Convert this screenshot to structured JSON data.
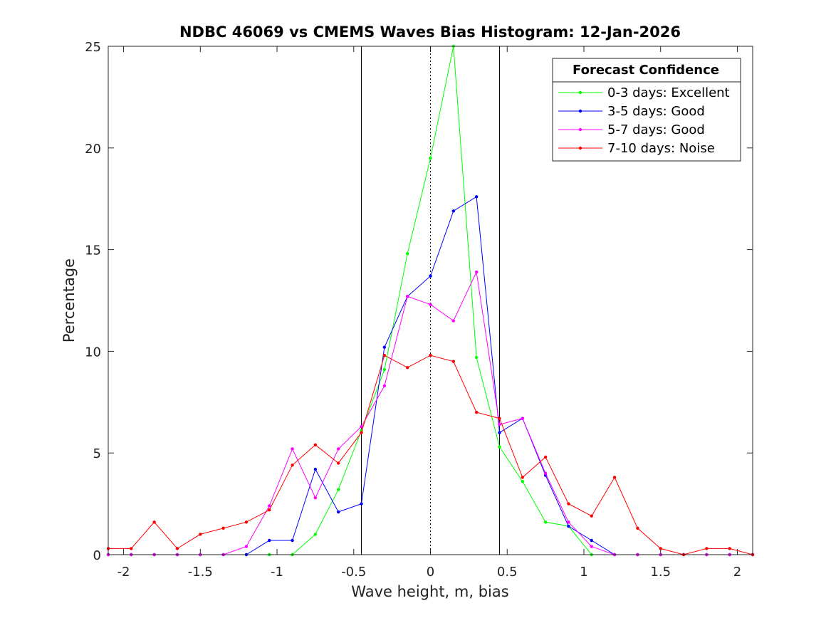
{
  "chart_data": {
    "type": "line",
    "title": "NDBC 46069 vs CMEMS Waves Bias Histogram: 12-Jan-2026",
    "xlabel": "Wave height, m, bias",
    "ylabel": "Percentage",
    "xlim": [
      -2.1,
      2.1
    ],
    "ylim": [
      0,
      25
    ],
    "xticks": [
      -2,
      -1.5,
      -1,
      -0.5,
      0,
      0.5,
      1,
      1.5,
      2
    ],
    "xtick_labels": [
      "-2",
      "-1.5",
      "-1",
      "-0.5",
      "0",
      "0.5",
      "1",
      "1.5",
      "2"
    ],
    "yticks": [
      0,
      5,
      10,
      15,
      20,
      25
    ],
    "ytick_labels": [
      "0",
      "5",
      "10",
      "15",
      "20",
      "25"
    ],
    "vlines": [
      {
        "x": -0.45,
        "style": "solid",
        "color": "#000000"
      },
      {
        "x": 0,
        "style": "dotted",
        "color": "#000000"
      },
      {
        "x": 0.45,
        "style": "solid",
        "color": "#000000"
      }
    ],
    "legend": {
      "title": "Forecast Confidence",
      "position": "top-right"
    },
    "series": [
      {
        "name": "0-3 days: Excellent",
        "color": "#00ff00",
        "x": [
          -2.1,
          -1.95,
          -1.8,
          -1.65,
          -1.5,
          -1.35,
          -1.2,
          -1.05,
          -0.9,
          -0.75,
          -0.6,
          -0.45,
          -0.3,
          -0.15,
          0,
          0.15,
          0.3,
          0.45,
          0.6,
          0.75,
          0.9,
          1.05,
          1.2,
          1.35,
          1.5,
          1.65,
          1.8,
          1.95,
          2.1
        ],
        "values": [
          0,
          0,
          0,
          0,
          0,
          0,
          0,
          0,
          0,
          1.0,
          3.2,
          6.1,
          9.1,
          14.8,
          19.5,
          25.0,
          9.7,
          5.3,
          3.6,
          1.6,
          1.4,
          0,
          0,
          0,
          0,
          0,
          0,
          0,
          0
        ]
      },
      {
        "name": "3-5 days: Good",
        "color": "#0000ff",
        "x": [
          -2.1,
          -1.95,
          -1.8,
          -1.65,
          -1.5,
          -1.35,
          -1.2,
          -1.05,
          -0.9,
          -0.75,
          -0.6,
          -0.45,
          -0.3,
          -0.15,
          0,
          0.15,
          0.3,
          0.45,
          0.6,
          0.75,
          0.9,
          1.05,
          1.2,
          1.35,
          1.5,
          1.65,
          1.8,
          1.95,
          2.1
        ],
        "values": [
          0,
          0,
          0,
          0,
          0,
          0,
          0,
          0.7,
          0.7,
          4.2,
          2.1,
          2.5,
          10.2,
          12.7,
          13.7,
          16.9,
          17.6,
          6.0,
          6.7,
          3.9,
          1.4,
          0.7,
          0,
          0,
          0,
          0,
          0,
          0,
          0
        ]
      },
      {
        "name": "5-7 days: Good",
        "color": "#ff00ff",
        "x": [
          -2.1,
          -1.95,
          -1.8,
          -1.65,
          -1.5,
          -1.35,
          -1.2,
          -1.05,
          -0.9,
          -0.75,
          -0.6,
          -0.45,
          -0.3,
          -0.15,
          0,
          0.15,
          0.3,
          0.45,
          0.6,
          0.75,
          0.9,
          1.05,
          1.2,
          1.35,
          1.5,
          1.65,
          1.8,
          1.95,
          2.1
        ],
        "values": [
          0,
          0,
          0,
          0,
          0,
          0,
          0.4,
          2.4,
          5.2,
          2.8,
          5.2,
          6.3,
          8.3,
          12.7,
          12.3,
          11.5,
          13.9,
          6.4,
          6.7,
          4.0,
          1.6,
          0.4,
          0,
          0,
          0,
          0,
          0,
          0,
          0
        ]
      },
      {
        "name": "7-10 days: Noise",
        "color": "#ff0000",
        "x": [
          -2.1,
          -1.95,
          -1.8,
          -1.65,
          -1.5,
          -1.35,
          -1.2,
          -1.05,
          -0.9,
          -0.75,
          -0.6,
          -0.45,
          -0.3,
          -0.15,
          0,
          0.15,
          0.3,
          0.45,
          0.6,
          0.75,
          0.9,
          1.05,
          1.2,
          1.35,
          1.5,
          1.65,
          1.8,
          1.95,
          2.1
        ],
        "values": [
          0.3,
          0.3,
          1.6,
          0.3,
          1.0,
          1.3,
          1.6,
          2.2,
          4.4,
          5.4,
          4.5,
          6.0,
          9.8,
          9.2,
          9.8,
          9.5,
          7.0,
          6.7,
          3.8,
          4.8,
          2.5,
          1.9,
          3.8,
          1.3,
          0.3,
          0,
          0.3,
          0.3,
          0
        ]
      }
    ]
  }
}
